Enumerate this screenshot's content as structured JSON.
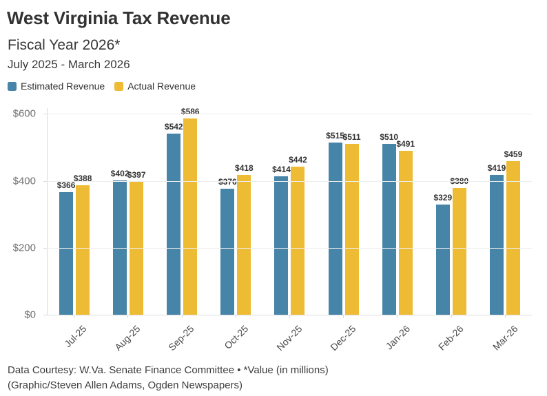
{
  "header": {
    "title": "West Virginia Tax Revenue",
    "subtitle": "Fiscal Year 2026*",
    "date_range": "July 2025 - March 2026"
  },
  "legend": {
    "items": [
      {
        "label": "Estimated Revenue",
        "color": "#4684A8"
      },
      {
        "label": "Actual Revenue",
        "color": "#EEBB34"
      }
    ]
  },
  "chart_data": {
    "type": "bar",
    "title": "West Virginia Tax Revenue",
    "subtitle": "Fiscal Year 2026*",
    "categories": [
      "Jul-25",
      "Aug-25",
      "Sep-25",
      "Oct-25",
      "Nov-25",
      "Dec-25",
      "Jan-26",
      "Feb-26",
      "Mar-26"
    ],
    "series": [
      {
        "name": "Estimated Revenue",
        "color": "#4684A8",
        "values": [
          366,
          402,
          542,
          376,
          414,
          515,
          510,
          329,
          419
        ]
      },
      {
        "name": "Actual Revenue",
        "color": "#EEBB34",
        "values": [
          388,
          397,
          586,
          418,
          442,
          511,
          491,
          380,
          459
        ]
      }
    ],
    "xlabel": "",
    "ylabel": "",
    "ylim": [
      0,
      600
    ],
    "y_ticks": [
      "$600",
      "$400",
      "$200",
      "$0"
    ],
    "value_prefix": "$",
    "units": "millions of dollars",
    "grid": true,
    "legend_position": "top-left"
  },
  "footer": {
    "line1": "Data Courtesy: W.Va. Senate Finance Committee • *Value (in millions)",
    "line2": "(Graphic/Steven Allen Adams, Ogden Newspapers)"
  }
}
